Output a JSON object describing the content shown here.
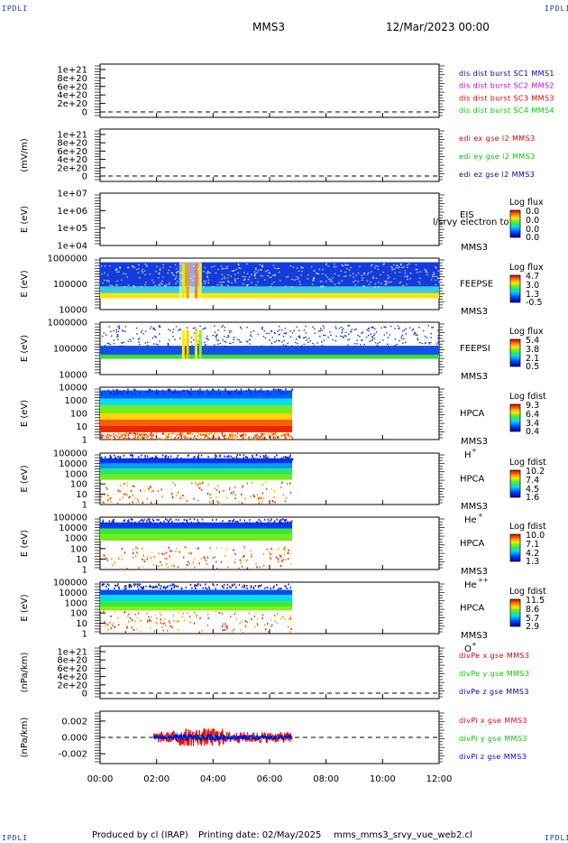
{
  "header": {
    "corner_label": "IPDLI",
    "spacecraft": "MMS3",
    "datetime": "12/Mar/2023 00:00"
  },
  "time_axis": {
    "ticks": [
      "00:00",
      "02:00",
      "04:00",
      "06:00",
      "08:00",
      "10:00",
      "12:00"
    ],
    "range_hours": [
      0,
      12
    ]
  },
  "chart_data": [
    {
      "type": "line",
      "panel": "dis-dist-burst",
      "ylabel": "",
      "yticks": [
        "0",
        "2e+20",
        "4e+20",
        "6e+20",
        "8e+20",
        "1e+21"
      ],
      "series": [
        {
          "name": "dis dist burst SC1 MMS1",
          "color": "#0000aa"
        },
        {
          "name": "dis dist burst SC2 MMS2",
          "color": "#cc00cc"
        },
        {
          "name": "dis dist burst SC3 MMS3",
          "color": "#dd0000"
        },
        {
          "name": "dis dist burst SC4 MMS4",
          "color": "#00cc00"
        }
      ],
      "zero_line": true
    },
    {
      "type": "line",
      "panel": "edi-e",
      "ylabel": "(mV/m)",
      "yticks": [
        "0",
        "2e+20",
        "4e+20",
        "6e+20",
        "8e+20",
        "1e+21"
      ],
      "series": [
        {
          "name": "edi ex gse l2 MMS3",
          "color": "#dd0000"
        },
        {
          "name": "edi ey gse l2 MMS3",
          "color": "#00cc00"
        },
        {
          "name": "edi ez gse l2 MMS3",
          "color": "#0000aa"
        }
      ],
      "zero_line": true
    },
    {
      "type": "heatmap",
      "panel": "eis",
      "ylabel": "E (eV)",
      "yticks": [
        "1e+04",
        "1e+05",
        "1e+06",
        "1e+07"
      ],
      "instrument": "EIS",
      "spacecraft": "MMS3",
      "overlay_text": "l/srvy electron to",
      "colorbar": {
        "title": "Log flux",
        "ticks": [
          "0.0",
          "0.0",
          "0.0",
          "0.0"
        ]
      }
    },
    {
      "type": "heatmap",
      "panel": "feeps-e",
      "ylabel": "E (eV)",
      "yticks": [
        "10000",
        "100000",
        "1000000"
      ],
      "instrument": "FEEPSE",
      "spacecraft": "MMS3",
      "colorbar": {
        "title": "Log flux",
        "ticks": [
          "4.7",
          "3.0",
          "1.3",
          "-0.5"
        ]
      },
      "data_hours": [
        0,
        12
      ]
    },
    {
      "type": "heatmap",
      "panel": "feeps-i",
      "ylabel": "E (eV)",
      "yticks": [
        "10000",
        "100000",
        "1000000"
      ],
      "instrument": "FEEPSI",
      "spacecraft": "MMS3",
      "colorbar": {
        "title": "Log flux",
        "ticks": [
          "5.4",
          "3.8",
          "2.1",
          "0.5"
        ]
      },
      "data_hours": [
        0,
        12
      ]
    },
    {
      "type": "heatmap",
      "panel": "hpca-h",
      "ylabel": "E (eV)",
      "yticks": [
        "1",
        "10",
        "100",
        "1000",
        "10000"
      ],
      "instrument": "HPCA",
      "spacecraft": "MMS3",
      "species": "H",
      "charge": "+",
      "colorbar": {
        "title": "Log fdist",
        "ticks": [
          "9.3",
          "6.4",
          "3.4",
          "0.4"
        ]
      },
      "data_hours": [
        0,
        6.8
      ]
    },
    {
      "type": "heatmap",
      "panel": "hpca-he",
      "ylabel": "E (eV)",
      "yticks": [
        "1",
        "10",
        "100",
        "1000",
        "10000",
        "100000"
      ],
      "instrument": "HPCA",
      "spacecraft": "MMS3",
      "species": "He",
      "charge": "+",
      "colorbar": {
        "title": "Log fdist",
        "ticks": [
          "10.2",
          "7.4",
          "4.5",
          "1.6"
        ]
      },
      "data_hours": [
        0,
        6.8
      ]
    },
    {
      "type": "heatmap",
      "panel": "hpca-he2",
      "ylabel": "E (eV)",
      "yticks": [
        "1",
        "10",
        "100",
        "1000",
        "10000",
        "100000"
      ],
      "instrument": "HPCA",
      "spacecraft": "MMS3",
      "species": "He",
      "charge": "++",
      "colorbar": {
        "title": "Log fdist",
        "ticks": [
          "10.0",
          "7.1",
          "4.2",
          "1.3"
        ]
      },
      "data_hours": [
        0,
        6.8
      ]
    },
    {
      "type": "heatmap",
      "panel": "hpca-o",
      "ylabel": "E (eV)",
      "yticks": [
        "1",
        "10",
        "100",
        "1000",
        "10000",
        "100000"
      ],
      "instrument": "HPCA",
      "spacecraft": "MMS3",
      "species": "O",
      "charge": "+",
      "colorbar": {
        "title": "Log fdist",
        "ticks": [
          "11.5",
          "8.6",
          "5.7",
          "2.9"
        ]
      },
      "data_hours": [
        0,
        6.8
      ]
    },
    {
      "type": "line",
      "panel": "divpe",
      "ylabel": "(nPa/km)",
      "yticks": [
        "0",
        "2e+20",
        "4e+20",
        "6e+20",
        "8e+20",
        "1e+21"
      ],
      "series": [
        {
          "name": "divPe x gse MMS3",
          "color": "#dd0000"
        },
        {
          "name": "divPe y gse MMS3",
          "color": "#00cc00"
        },
        {
          "name": "divPe z gse MMS3",
          "color": "#0000aa"
        }
      ],
      "zero_line": true
    },
    {
      "type": "line",
      "panel": "divpi",
      "ylabel": "(nPa/km)",
      "yticks": [
        "-0.002",
        "0.000",
        "0.002"
      ],
      "ylim": [
        -0.0032,
        0.0032
      ],
      "series": [
        {
          "name": "divPi x gse MMS3",
          "color": "#ff0000",
          "amplitude": 0.0011
        },
        {
          "name": "divPi y gse MMS3",
          "color": "#00cc00",
          "amplitude": 0.0003
        },
        {
          "name": "divPi z gse MMS3",
          "color": "#0000ff",
          "amplitude": 0.0004
        }
      ],
      "zero_line": true,
      "data_hours": [
        1.9,
        6.8
      ]
    }
  ],
  "footer": {
    "produced_by": "Produced by cl (IRAP)",
    "printing_date": "Printing date: 02/May/2025",
    "script": "mms_mms3_srvy_vue_web2.cl"
  }
}
